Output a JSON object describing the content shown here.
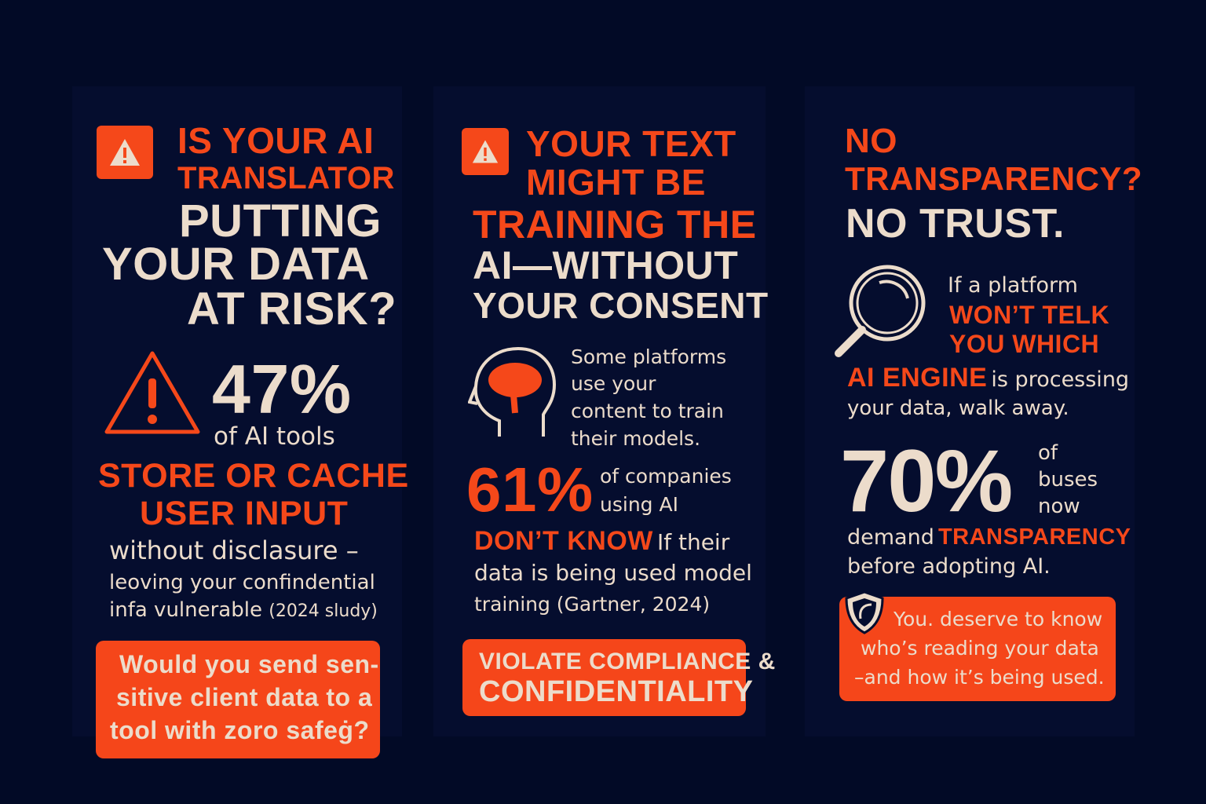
{
  "colors": {
    "background": "#020a26",
    "panel": "#050d2e",
    "accent": "#f5481a",
    "text": "#ecdccb"
  },
  "panel1": {
    "icon": "warning-icon",
    "title_orange_1": "IS YOUR  AI",
    "title_orange_2": "TRANSLATOR",
    "title_cream_1": "PUTTING",
    "title_cream_2": "YOUR DATA",
    "title_cream_3": "AT RISK?",
    "stat_icon": "warning-triangle-icon",
    "stat": "47%",
    "stat_label": "of AI tools",
    "highlight_1": "STORE OR CACHE",
    "highlight_2": "USER INPUT",
    "body_1": "without disclasure –",
    "body_2": "leoving your confindential",
    "body_3": "infa vulnerable",
    "body_source": "(2024 sludy)",
    "callout_1": "Would you send sen-",
    "callout_2": "sitive client data to a",
    "callout_3": "tool with zoro safeġ?"
  },
  "panel2": {
    "icon": "warning-icon",
    "title_orange_1": "YOUR TEXT",
    "title_orange_2": "MIGHT BE",
    "title_orange_3": "TRAINING THE",
    "title_cream_1": "AI—WITHOUT",
    "title_cream_2": "YOUR CONSENT",
    "brain_icon": "head-brain-icon",
    "body_1": "Some platforms",
    "body_2": "use your",
    "body_3": "content to train",
    "body_4": "their models.",
    "stat": "61%",
    "stat_label_1": "of companies",
    "stat_label_2": "using AI",
    "highlight": "DON’T KNOW",
    "after_highlight": "If their",
    "body_5": "data is being used model",
    "body_6": "training (Gartner, 2024)",
    "callout_1": "VIOLATE COMPLIANCE &",
    "callout_2": "CONFIDENTIALITY"
  },
  "panel3": {
    "title_orange_1": "NO",
    "title_orange_2": "TRANSPARENCY?",
    "title_cream": "NO TRUST.",
    "search_icon": "magnifying-glass-icon",
    "body_1": "If a platform",
    "highlight_1": "WON’T TELK",
    "highlight_2": "YOU WHICH",
    "highlight_3": "AI ENGINE",
    "body_2": "is processing",
    "body_3": "your data, walk away.",
    "stat": "70%",
    "stat_label_1": "of",
    "stat_label_2": "buses",
    "stat_label_3": "now",
    "body_4": "demand",
    "highlight_4": "TRANSPARENCY",
    "body_5": "before adopting AI.",
    "shield_icon": "shield-icon",
    "callout_1": "You. deserve to know",
    "callout_2": "who’s reading your data",
    "callout_3": "–and how it’s being used."
  }
}
